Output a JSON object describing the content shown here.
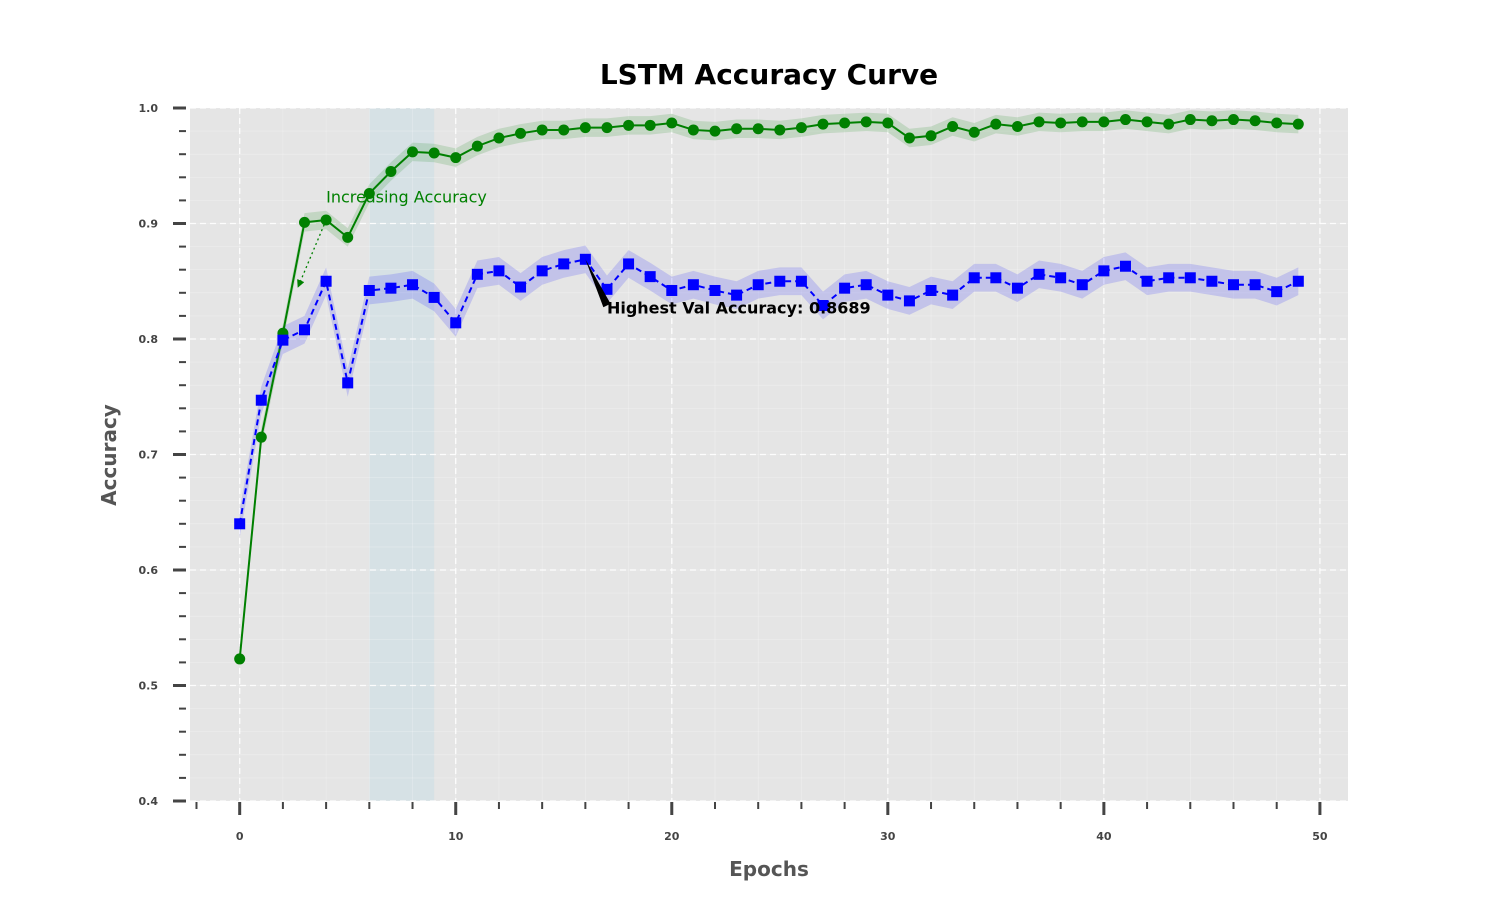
{
  "chart_data": {
    "type": "line",
    "title": "LSTM Accuracy Curve",
    "xlabel": "Epochs",
    "ylabel": "Accuracy",
    "xlim": [
      -2.3,
      51.3
    ],
    "ylim": [
      0.4,
      1.0
    ],
    "xticks": [
      0,
      10,
      20,
      30,
      40,
      50
    ],
    "yticks": [
      0.4,
      0.5,
      0.6,
      0.7,
      0.8,
      0.9,
      1.0
    ],
    "x_minor_step": 2,
    "y_minor_step": 0.02,
    "grid": true,
    "background": "#e5e5e5",
    "shaded_region": {
      "x0": 6,
      "x1": 9,
      "color": "#add8e6"
    },
    "x": [
      0,
      1,
      2,
      3,
      4,
      5,
      6,
      7,
      8,
      9,
      10,
      11,
      12,
      13,
      14,
      15,
      16,
      17,
      18,
      19,
      20,
      21,
      22,
      23,
      24,
      25,
      26,
      27,
      28,
      29,
      30,
      31,
      32,
      33,
      34,
      35,
      36,
      37,
      38,
      39,
      40,
      41,
      42,
      43,
      44,
      45,
      46,
      47,
      48,
      49
    ],
    "series": [
      {
        "color": "#008000",
        "marker": "circle",
        "linestyle": "solid",
        "band": 0.008,
        "values": [
          0.523,
          0.715,
          0.805,
          0.901,
          0.903,
          0.888,
          0.926,
          0.945,
          0.962,
          0.961,
          0.957,
          0.967,
          0.974,
          0.978,
          0.981,
          0.981,
          0.983,
          0.983,
          0.985,
          0.985,
          0.987,
          0.981,
          0.98,
          0.982,
          0.982,
          0.981,
          0.983,
          0.986,
          0.987,
          0.988,
          0.987,
          0.974,
          0.976,
          0.984,
          0.979,
          0.986,
          0.984,
          0.988,
          0.987,
          0.988,
          0.988,
          0.99,
          0.988,
          0.986,
          0.99,
          0.989,
          0.99,
          0.989,
          0.987,
          0.986
        ]
      },
      {
        "color": "#0000ff",
        "marker": "square",
        "linestyle": "dashed",
        "band": 0.012,
        "values": [
          0.64,
          0.747,
          0.799,
          0.808,
          0.85,
          0.762,
          0.842,
          0.844,
          0.847,
          0.836,
          0.814,
          0.856,
          0.859,
          0.845,
          0.859,
          0.865,
          0.869,
          0.843,
          0.865,
          0.854,
          0.842,
          0.847,
          0.842,
          0.838,
          0.847,
          0.85,
          0.85,
          0.829,
          0.844,
          0.847,
          0.838,
          0.833,
          0.842,
          0.838,
          0.853,
          0.853,
          0.844,
          0.856,
          0.853,
          0.847,
          0.859,
          0.863,
          0.85,
          0.853,
          0.853,
          0.85,
          0.847,
          0.847,
          0.841,
          0.85
        ]
      }
    ],
    "annotations": [
      {
        "text": "Increasing Accuracy",
        "x": 4,
        "y": 0.918,
        "arrow_from": [
          4,
          0.903
        ],
        "arrow_to": [
          2.7,
          0.845
        ],
        "color": "#008000",
        "style": "green"
      },
      {
        "text": "Highest Val Accuracy: 0.8689",
        "x": 17,
        "y": 0.822,
        "arrow_from": [
          17,
          0.829
        ],
        "arrow_to": [
          16,
          0.869
        ],
        "color": "#000000",
        "style": "black"
      }
    ]
  }
}
